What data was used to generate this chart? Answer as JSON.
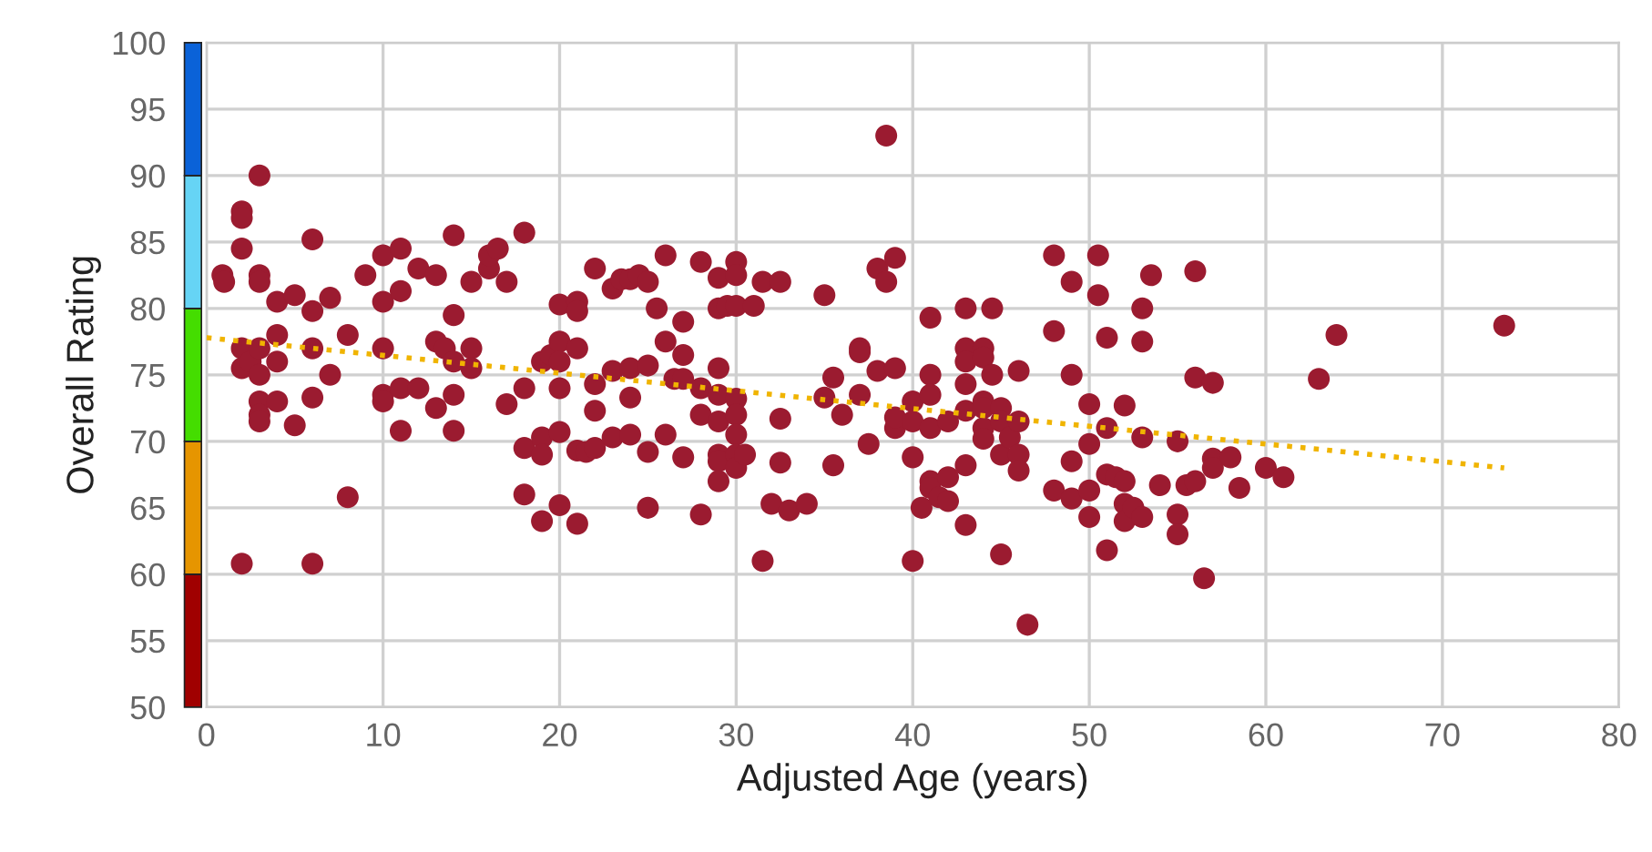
{
  "chart_data": {
    "type": "scatter",
    "xlabel": "Adjusted Age (years)",
    "ylabel": "Overall Rating",
    "xlim": [
      0,
      80
    ],
    "xticks": [
      0,
      10,
      20,
      30,
      40,
      50,
      60,
      70,
      80
    ],
    "ylim": [
      50,
      100
    ],
    "yticks": [
      50,
      55,
      60,
      65,
      70,
      75,
      80,
      85,
      90,
      95,
      100
    ],
    "grid": true,
    "legend": false,
    "series": [
      {
        "color": "#9b1b30",
        "marker": "circle",
        "x": [
          0.9,
          1,
          2,
          2,
          2,
          3,
          3,
          3,
          4,
          5,
          6,
          6,
          7,
          2,
          2,
          2.5,
          3,
          3,
          3,
          3,
          3,
          4,
          4,
          4,
          5,
          6,
          6,
          7,
          8,
          8,
          2,
          6,
          9,
          10,
          10,
          10,
          10,
          10,
          11,
          11,
          11,
          11,
          12,
          12,
          13,
          13,
          13,
          13.5,
          14,
          14,
          14,
          14,
          14,
          15,
          15,
          15,
          16,
          16,
          16.5,
          17,
          17,
          18,
          18,
          18,
          18,
          19,
          19,
          19,
          19,
          19.5,
          20,
          20,
          20,
          20,
          20,
          20,
          21,
          21,
          21,
          21,
          21,
          21.5,
          22,
          22,
          22,
          22,
          23,
          23,
          23,
          23.5,
          24,
          24,
          24,
          24,
          24.5,
          25,
          25,
          25,
          25,
          25.5,
          26,
          26,
          26,
          26.5,
          27,
          27,
          27,
          27,
          28,
          28,
          28,
          28,
          29,
          29,
          29,
          29,
          29,
          29,
          29,
          29,
          29.5,
          30,
          30,
          30,
          30,
          30,
          30,
          30,
          30,
          30.5,
          31,
          31.5,
          31.5,
          32,
          32.5,
          32.5,
          32.5,
          33,
          34,
          35,
          35,
          35.5,
          35.5,
          36,
          37,
          37,
          37,
          37.5,
          38,
          38,
          38.5,
          38.5,
          39,
          39,
          39,
          39,
          40,
          40,
          40,
          40,
          40.5,
          41,
          41,
          41,
          41,
          41,
          41,
          41.5,
          42,
          42,
          42,
          43,
          43,
          43,
          43,
          43,
          43,
          43,
          44,
          44,
          44,
          44,
          44,
          44,
          44.5,
          44.5,
          45,
          45,
          45,
          45,
          45.5,
          46,
          46,
          46,
          46,
          46.5,
          48,
          48,
          48,
          49,
          49,
          49,
          49,
          50,
          50,
          50,
          50,
          50.5,
          50.5,
          51,
          51,
          51,
          51,
          51.5,
          52,
          52,
          52,
          52,
          52.5,
          53,
          53,
          53,
          53,
          53.5,
          54,
          55,
          55,
          55,
          55.5,
          56,
          56,
          56,
          56.5,
          57,
          57,
          57,
          58,
          58.5,
          60,
          61,
          63,
          64,
          73.5
        ],
        "values": [
          82.5,
          82,
          87.3,
          86.8,
          84.5,
          90,
          82.5,
          82,
          80.5,
          81,
          85.2,
          79.8,
          80.8,
          77,
          75.5,
          76,
          77,
          75,
          73,
          72,
          71.5,
          78,
          76,
          73,
          71.2,
          77,
          73.3,
          75,
          78,
          65.8,
          60.8,
          60.8,
          82.5,
          84,
          80.5,
          77,
          73.5,
          73,
          84.5,
          81.3,
          74,
          70.8,
          83,
          74,
          82.5,
          77.5,
          72.5,
          77,
          85.5,
          79.5,
          76,
          73.5,
          70.8,
          82,
          77,
          75.5,
          83,
          84,
          84.5,
          82,
          72.8,
          85.7,
          74,
          69.5,
          66,
          76,
          70.3,
          69,
          64,
          76.5,
          80.3,
          77.5,
          76,
          74,
          70.7,
          65.2,
          80.5,
          79.8,
          77,
          69.3,
          63.8,
          69.2,
          83,
          74.3,
          72.3,
          69.5,
          81.5,
          75.3,
          70.3,
          82.2,
          82.2,
          75.5,
          73.3,
          70.5,
          82.5,
          82,
          75.7,
          69.2,
          65,
          80,
          84,
          77.5,
          70.5,
          74.7,
          79,
          76.5,
          74.7,
          68.8,
          83.5,
          74,
          72,
          64.5,
          82.3,
          80,
          75.5,
          73.5,
          71.5,
          69,
          68.5,
          67,
          80.2,
          83.5,
          82.5,
          80.2,
          73.2,
          72,
          70.5,
          69,
          68,
          69,
          80.2,
          82,
          61,
          65.3,
          82,
          71.7,
          68.4,
          64.8,
          65.3,
          81,
          73.3,
          74.8,
          68.2,
          72,
          77,
          76.7,
          73.5,
          69.8,
          83,
          75.3,
          93,
          82,
          83.8,
          75.5,
          71,
          71.8,
          73,
          71.5,
          68.8,
          61,
          65,
          79.3,
          75,
          73.5,
          71,
          67,
          66.5,
          65.8,
          71.5,
          67.3,
          65.5,
          80,
          77,
          76,
          74.3,
          72.3,
          68.2,
          63.7,
          77,
          76.3,
          73,
          71,
          70.2,
          72.5,
          80,
          75,
          72.5,
          71.5,
          69,
          61.5,
          70.3,
          71.5,
          69,
          67.8,
          75.3,
          56.2,
          84,
          78.3,
          66.3,
          82,
          75,
          68.5,
          65.7,
          72.8,
          69.8,
          66.3,
          64.3,
          84,
          81,
          77.8,
          71,
          67.5,
          61.8,
          67.3,
          72.7,
          67,
          65.3,
          64,
          65,
          80,
          77.5,
          70.3,
          64.3,
          82.5,
          66.7,
          70,
          64.5,
          63,
          66.7,
          82.8,
          74.8,
          67,
          59.7,
          74.4,
          68.7,
          68,
          68.8,
          66.5,
          68,
          67.3,
          74.7,
          78,
          78.7
        ]
      },
      {
        "type": "line",
        "color": "#f0b400",
        "line_style": "dotted",
        "x": [
          0,
          73.5
        ],
        "values": [
          77.8,
          68.0
        ]
      }
    ]
  }
}
